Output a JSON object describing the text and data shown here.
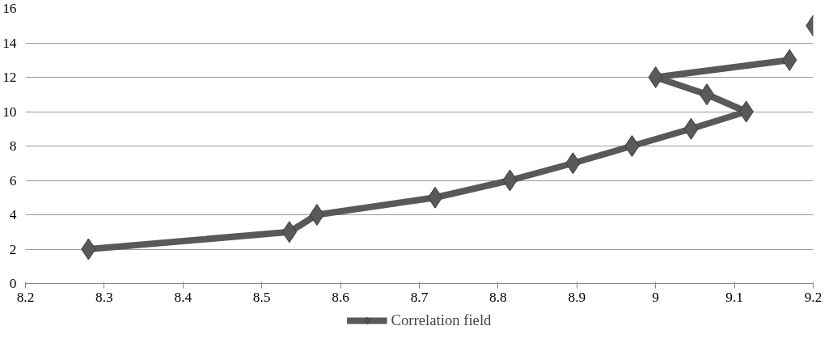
{
  "chart_data": {
    "type": "line",
    "x": [
      8.28,
      8.535,
      8.57,
      8.72,
      8.815,
      8.895,
      8.97,
      9.045,
      9.115,
      9.065,
      9.0,
      9.17
    ],
    "series": [
      {
        "name": "Correlation field",
        "color": "#595959",
        "values": [
          2,
          3,
          4,
          5,
          6,
          7,
          8,
          9,
          10,
          11,
          12,
          13
        ]
      },
      {
        "type": "scatter",
        "color": "#595959",
        "x": [
          9.2
        ],
        "values": [
          15
        ]
      }
    ],
    "xlim": [
      8.2,
      9.2
    ],
    "xticks": [
      8.2,
      8.3,
      8.4,
      8.5,
      8.6,
      8.7,
      8.8,
      8.9,
      9,
      9.1,
      9.2
    ],
    "ylim": [
      0,
      16
    ],
    "yticks": [
      0,
      2,
      4,
      6,
      8,
      10,
      12,
      14,
      16
    ],
    "grid": "y",
    "legend": "bottom",
    "marker": "diamond",
    "line_style": "solid"
  }
}
